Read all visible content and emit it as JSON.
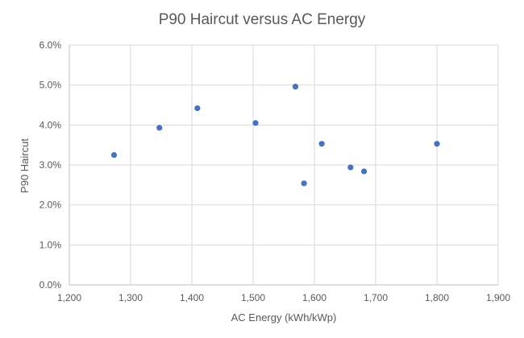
{
  "chart_data": {
    "type": "scatter",
    "title": "P90 Haircut versus AC Energy",
    "xlabel": "AC Energy (kWh/kWp)",
    "ylabel": "P90 Haircut",
    "xlim": [
      1200,
      1900
    ],
    "ylim": [
      0.0,
      6.0
    ],
    "x_ticks": [
      1200,
      1300,
      1400,
      1500,
      1600,
      1700,
      1800,
      1900
    ],
    "x_tick_labels": [
      "1,200",
      "1,300",
      "1,400",
      "1,500",
      "1,600",
      "1,700",
      "1,800",
      "1,900"
    ],
    "y_ticks": [
      0,
      1,
      2,
      3,
      4,
      5,
      6
    ],
    "y_tick_labels": [
      "0.0%",
      "1.0%",
      "2.0%",
      "3.0%",
      "4.0%",
      "5.0%",
      "6.0%"
    ],
    "grid": true,
    "marker_color": "#4472c4",
    "series": [
      {
        "points": [
          {
            "x": 1273,
            "y": 3.25
          },
          {
            "x": 1347,
            "y": 3.93
          },
          {
            "x": 1409,
            "y": 4.42
          },
          {
            "x": 1504,
            "y": 4.05
          },
          {
            "x": 1569,
            "y": 4.96
          },
          {
            "x": 1583,
            "y": 2.54
          },
          {
            "x": 1612,
            "y": 3.53
          },
          {
            "x": 1659,
            "y": 2.94
          },
          {
            "x": 1681,
            "y": 2.84
          },
          {
            "x": 1800,
            "y": 3.53
          }
        ]
      }
    ]
  }
}
